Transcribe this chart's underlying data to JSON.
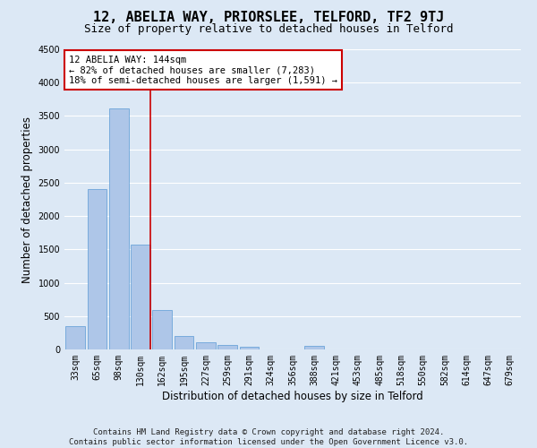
{
  "title": "12, ABELIA WAY, PRIORSLEE, TELFORD, TF2 9TJ",
  "subtitle": "Size of property relative to detached houses in Telford",
  "xlabel": "Distribution of detached houses by size in Telford",
  "ylabel": "Number of detached properties",
  "footer": "Contains HM Land Registry data © Crown copyright and database right 2024.\nContains public sector information licensed under the Open Government Licence v3.0.",
  "categories": [
    "33sqm",
    "65sqm",
    "98sqm",
    "130sqm",
    "162sqm",
    "195sqm",
    "227sqm",
    "259sqm",
    "291sqm",
    "324sqm",
    "356sqm",
    "388sqm",
    "421sqm",
    "453sqm",
    "485sqm",
    "518sqm",
    "550sqm",
    "582sqm",
    "614sqm",
    "647sqm",
    "679sqm"
  ],
  "values": [
    350,
    2400,
    3620,
    1570,
    595,
    200,
    105,
    65,
    40,
    0,
    0,
    60,
    0,
    0,
    0,
    0,
    0,
    0,
    0,
    0,
    0
  ],
  "bar_color": "#aec6e8",
  "bar_edge_color": "#5b9bd5",
  "highlight_index": 3,
  "annotation_text": "12 ABELIA WAY: 144sqm\n← 82% of detached houses are smaller (7,283)\n18% of semi-detached houses are larger (1,591) →",
  "annotation_box_color": "#ffffff",
  "annotation_box_edge": "#cc0000",
  "vline_color": "#cc0000",
  "ylim": [
    0,
    4500
  ],
  "yticks": [
    0,
    500,
    1000,
    1500,
    2000,
    2500,
    3000,
    3500,
    4000,
    4500
  ],
  "background_color": "#dce8f5",
  "grid_color": "#ffffff",
  "fig_bg_color": "#dce8f5",
  "title_fontsize": 11,
  "subtitle_fontsize": 9,
  "axis_label_fontsize": 8.5,
  "tick_fontsize": 7,
  "annotation_fontsize": 7.5,
  "footer_fontsize": 6.5
}
